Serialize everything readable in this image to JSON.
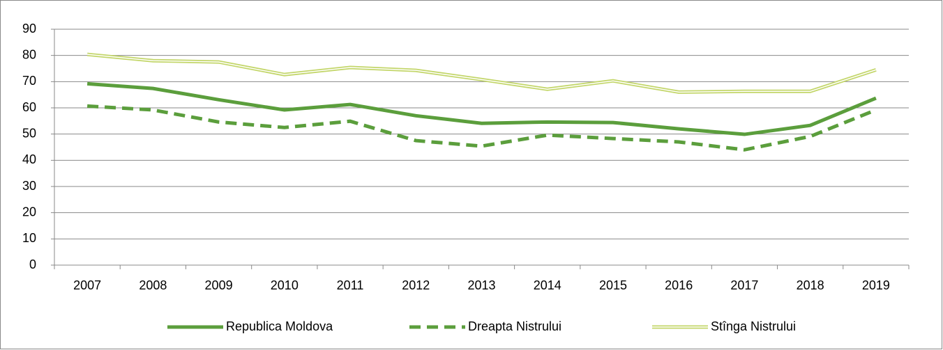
{
  "chart_data": {
    "type": "line",
    "categories": [
      "2007",
      "2008",
      "2009",
      "2010",
      "2011",
      "2012",
      "2013",
      "2014",
      "2015",
      "2016",
      "2017",
      "2018",
      "2019"
    ],
    "series": [
      {
        "name": "Republica Moldova",
        "color": "#5b9e3c",
        "line_style": "solid",
        "values": [
          69.2,
          67.4,
          63.1,
          59.2,
          61.3,
          57.0,
          54.1,
          54.6,
          54.4,
          52.0,
          49.9,
          53.3,
          63.7
        ]
      },
      {
        "name": "Dreapta Nistrului",
        "color": "#5b9e3c",
        "line_style": "dashed",
        "values": [
          60.7,
          59.2,
          54.6,
          52.5,
          54.9,
          47.5,
          45.4,
          49.6,
          48.3,
          47.0,
          44.0,
          49.1,
          59.2
        ]
      },
      {
        "name": "Stînga Nistrului",
        "color": "#c3d66a",
        "line_style": "double",
        "values": [
          80.4,
          78.0,
          77.5,
          72.7,
          75.4,
          74.3,
          70.8,
          67.1,
          70.3,
          66.0,
          66.3,
          66.3,
          74.5
        ]
      }
    ],
    "ylim": [
      0,
      90
    ],
    "yticks": [
      0,
      10,
      20,
      30,
      40,
      50,
      60,
      70,
      80,
      90
    ],
    "grid": true,
    "legend": "bottom"
  }
}
